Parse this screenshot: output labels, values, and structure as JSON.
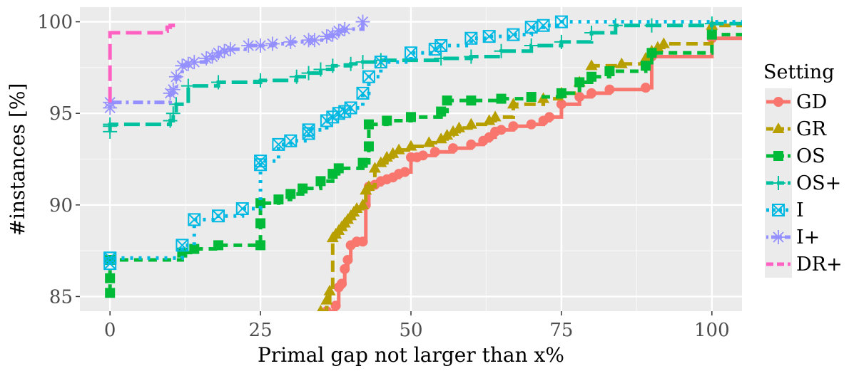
{
  "chart_data": {
    "type": "line",
    "title": "",
    "xlabel": "Primal gap not larger than x%",
    "ylabel": "#instances [%]",
    "xlim": [
      -5,
      105
    ],
    "ylim": [
      84.2,
      100.8
    ],
    "x_ticks": [
      0,
      25,
      50,
      75,
      100
    ],
    "x_tick_labels": [
      "0",
      "25",
      "50",
      "75",
      "100"
    ],
    "y_ticks": [
      85,
      90,
      95,
      100
    ],
    "y_tick_labels": [
      "85",
      "90",
      "95",
      "100"
    ],
    "grid": true,
    "legend_title": "Setting",
    "legend_position": "right",
    "series": [
      {
        "name": "GD",
        "color": "#F8766D",
        "dash": "solid",
        "marker": "circle",
        "x": [
          36,
          37.5,
          38,
          38.5,
          39,
          39.5,
          40,
          41,
          42,
          42.5,
          43,
          44,
          45,
          46,
          47,
          48,
          49,
          50,
          51,
          52,
          54,
          57,
          60,
          62,
          63,
          64,
          65,
          67,
          70,
          72,
          73,
          75,
          78,
          80,
          83,
          89,
          90,
          100,
          105
        ],
        "y": [
          84.2,
          84.5,
          85.5,
          85.7,
          86.5,
          87.0,
          87.8,
          88.0,
          88.0,
          90.0,
          91.0,
          91.1,
          91.3,
          91.4,
          91.5,
          91.7,
          91.8,
          92.6,
          92.6,
          92.7,
          92.9,
          93.1,
          93.3,
          93.5,
          93.7,
          94.0,
          94.1,
          94.3,
          94.4,
          94.6,
          94.8,
          95.5,
          95.9,
          96.1,
          96.3,
          96.4,
          98.1,
          99.1,
          99.1
        ]
      },
      {
        "name": "GR",
        "color": "#B79F00",
        "dash": "long",
        "marker": "triangle",
        "x": [
          35,
          36,
          36.5,
          37,
          37.5,
          38,
          38.5,
          39,
          39.5,
          40,
          40.5,
          41,
          42,
          42.5,
          43,
          44,
          45,
          46,
          47,
          48,
          50,
          53,
          55,
          56,
          57,
          58,
          60,
          63,
          64,
          67,
          72,
          75,
          78,
          80,
          85,
          89,
          90,
          91,
          92,
          100,
          105
        ],
        "y": [
          84.2,
          84.8,
          85.3,
          88.2,
          88.4,
          88.6,
          88.8,
          89.0,
          89.2,
          89.4,
          89.6,
          89.8,
          90.0,
          90.8,
          91.0,
          92.0,
          92.3,
          92.6,
          92.8,
          93.0,
          93.2,
          93.4,
          93.6,
          93.8,
          94.0,
          94.2,
          94.4,
          94.6,
          94.8,
          95.5,
          95.8,
          96.1,
          96.7,
          97.6,
          97.7,
          98.0,
          98.4,
          98.6,
          98.8,
          99.8,
          99.8
        ]
      },
      {
        "name": "OS",
        "color": "#00BA38",
        "dash": "dashed",
        "marker": "square",
        "x": [
          0,
          0,
          0,
          12,
          14,
          18,
          25,
          25,
          25,
          28,
          30,
          32,
          35,
          37,
          38,
          42,
          43,
          43,
          46,
          50,
          55,
          56,
          60,
          65,
          70,
          75,
          78,
          80,
          83,
          89,
          90,
          100,
          105
        ],
        "y": [
          85.2,
          86.0,
          87.0,
          87.4,
          87.6,
          87.8,
          87.8,
          89.0,
          90.1,
          90.3,
          90.6,
          90.9,
          91.3,
          91.7,
          92.0,
          92.3,
          93.2,
          94.4,
          94.6,
          94.8,
          95.1,
          95.7,
          95.7,
          95.8,
          95.9,
          96.1,
          96.7,
          97.0,
          97.3,
          97.6,
          98.3,
          99.3,
          99.3
        ]
      },
      {
        "name": "OS+",
        "color": "#00C19F",
        "dash": "longdash",
        "marker": "plus",
        "x": [
          0,
          0,
          0,
          10,
          10.5,
          11,
          13,
          18,
          25,
          31,
          33,
          35,
          37,
          40,
          42,
          45,
          55,
          60,
          65,
          70,
          75,
          80,
          84,
          90,
          100,
          105
        ],
        "y": [
          94.0,
          94.3,
          94.4,
          94.6,
          95.0,
          95.5,
          96.5,
          96.7,
          96.8,
          97.0,
          97.2,
          97.4,
          97.6,
          97.7,
          97.8,
          97.9,
          98.0,
          98.1,
          98.4,
          98.7,
          98.9,
          99.4,
          99.8,
          99.8,
          99.9,
          99.9
        ]
      },
      {
        "name": "I",
        "color": "#00B9E3",
        "dash": "dotted",
        "marker": "boxx",
        "x": [
          0,
          0,
          0,
          12,
          14,
          18,
          22,
          25,
          25,
          28,
          30,
          33,
          33,
          36,
          37,
          38,
          39,
          40,
          42,
          43,
          45,
          50,
          54,
          55,
          60,
          63,
          67,
          70,
          72,
          75,
          105
        ],
        "y": [
          86.8,
          87.1,
          87.1,
          87.8,
          89.2,
          89.4,
          89.8,
          92.2,
          92.4,
          93.3,
          93.5,
          93.9,
          94.1,
          94.6,
          94.8,
          95.0,
          95.1,
          95.3,
          96.1,
          97.0,
          97.8,
          98.3,
          98.5,
          98.7,
          99.1,
          99.2,
          99.3,
          99.7,
          99.8,
          100.0,
          100.0
        ]
      },
      {
        "name": "I+",
        "color": "#9590FF",
        "dash": "dotdash",
        "marker": "star",
        "x": [
          0,
          0,
          10,
          10.5,
          11,
          12,
          13,
          14,
          16,
          17,
          18,
          19,
          20,
          23,
          25,
          27,
          30,
          33,
          34,
          36,
          37,
          38,
          39,
          42
        ],
        "y": [
          95.3,
          95.6,
          96.1,
          96.3,
          97.0,
          97.6,
          97.7,
          97.8,
          98.0,
          98.1,
          98.3,
          98.4,
          98.5,
          98.7,
          98.7,
          98.8,
          98.9,
          99.0,
          99.0,
          99.2,
          99.3,
          99.5,
          99.6,
          100.0
        ]
      },
      {
        "name": "DR+",
        "color": "#FF61C3",
        "dash": "longdash",
        "marker": "none",
        "x": [
          0,
          0,
          9,
          9.5,
          10,
          10.5
        ],
        "y": [
          95.6,
          99.4,
          99.5,
          99.7,
          99.8,
          99.9
        ]
      }
    ]
  }
}
